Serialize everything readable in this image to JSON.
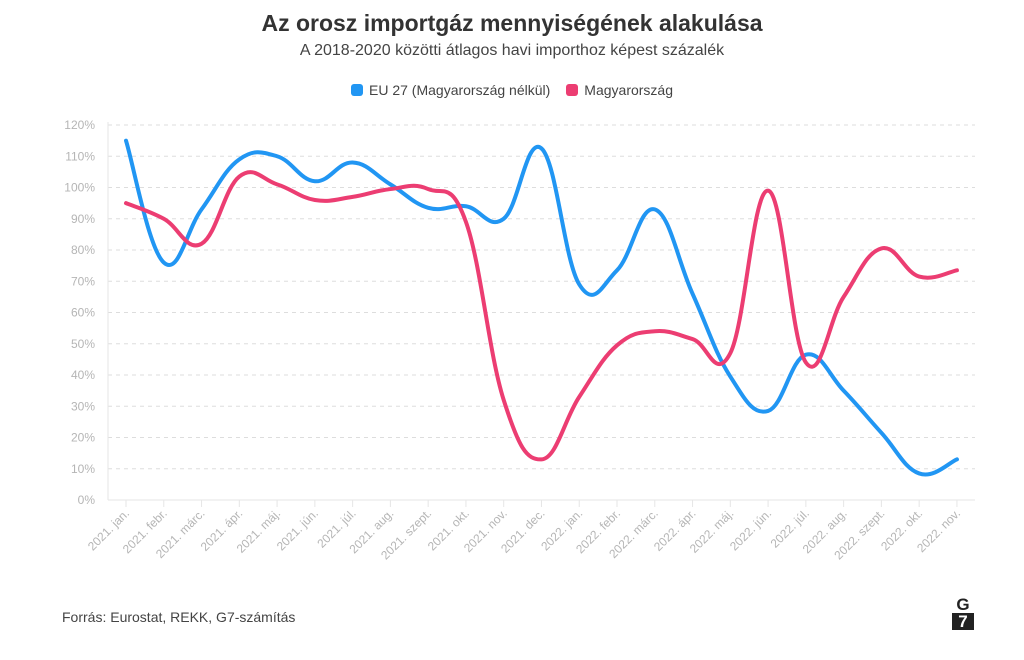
{
  "header": {
    "title": "Az orosz importgáz mennyiségének alakulása",
    "subtitle": "A 2018-2020 közötti átlagos havi importhoz képest százalék"
  },
  "footer": {
    "source": "Forrás: Eurostat, REKK, G7-számítás",
    "logo": [
      "G",
      "7"
    ]
  },
  "chart_data": {
    "type": "line",
    "title": "Az orosz importgáz mennyiségének alakulása",
    "subtitle": "A 2018-2020 közötti átlagos havi importhoz képest százalék",
    "xlabel": "",
    "ylabel": "",
    "ylim": [
      0,
      120
    ],
    "yticks": [
      0,
      10,
      20,
      30,
      40,
      50,
      60,
      70,
      80,
      90,
      100,
      110,
      120
    ],
    "ytick_suffix": "%",
    "grid": true,
    "legend_position": "top-center",
    "categories": [
      "2021. jan.",
      "2021. febr.",
      "2021. márc.",
      "2021. ápr.",
      "2021. máj.",
      "2021. jún.",
      "2021. júl.",
      "2021. aug.",
      "2021. szept.",
      "2021. okt.",
      "2021. nov.",
      "2021. dec.",
      "2022. jan.",
      "2022. febr.",
      "2022. márc.",
      "2022. ápr.",
      "2022. máj.",
      "2022. jún.",
      "2022. júl.",
      "2022. aug.",
      "2022. szept.",
      "2022. okt.",
      "2022. nov."
    ],
    "series": [
      {
        "name": "EU 27 (Magyarország nélkül)",
        "color": "#2196f3",
        "values": [
          115,
          76,
          93,
          109,
          110,
          102,
          108,
          101,
          93.5,
          94,
          90,
          112.5,
          69,
          73.5,
          93,
          66,
          39.5,
          28.5,
          46.5,
          35,
          21.5,
          8.5,
          13
        ]
      },
      {
        "name": "Magyarország",
        "color": "#ec3d72",
        "values": [
          95,
          90,
          82,
          103.5,
          101,
          96,
          97,
          99.5,
          99.5,
          89,
          32,
          13,
          33,
          49.5,
          54,
          51.5,
          47,
          99,
          44,
          65,
          80.5,
          71.5,
          73.5
        ]
      }
    ]
  }
}
